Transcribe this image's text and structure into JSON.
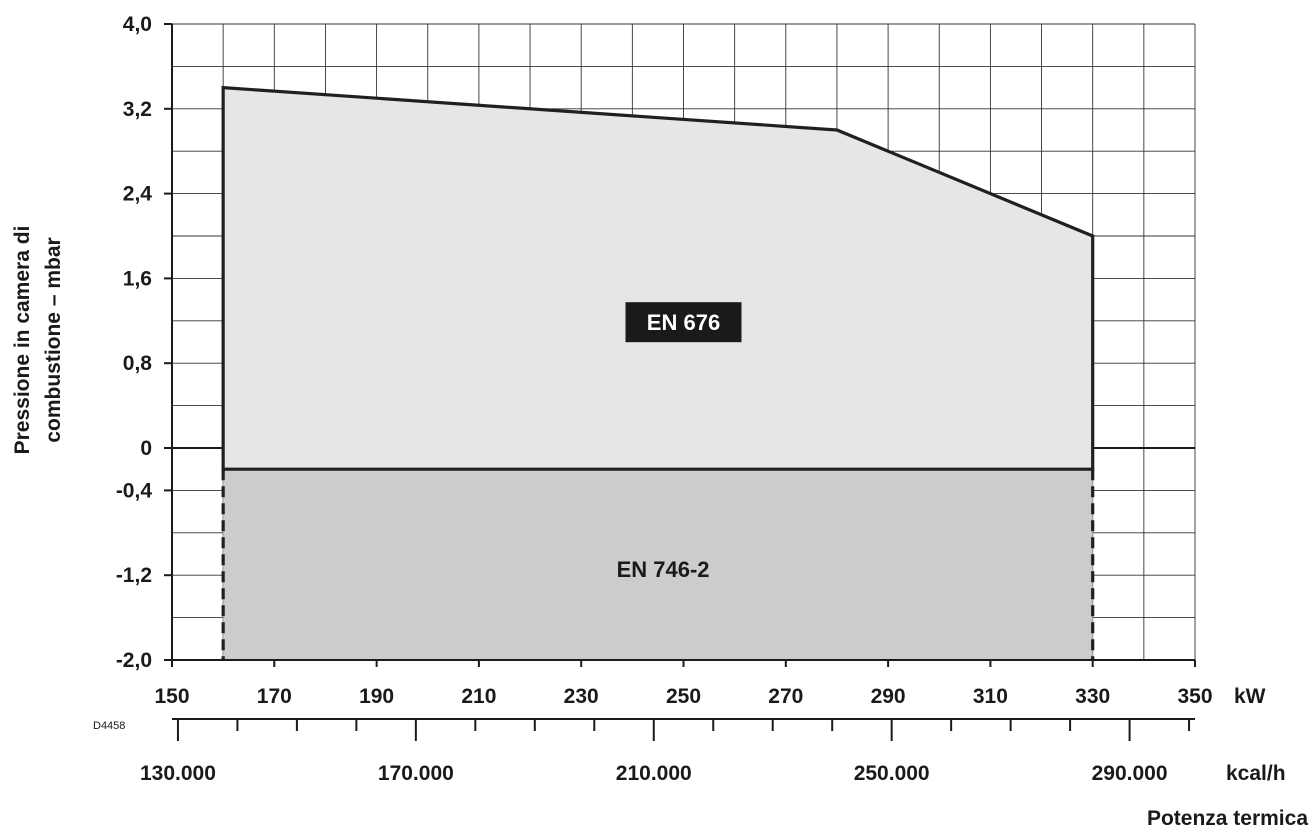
{
  "chart_data": {
    "type": "area",
    "drawing_code": "D4458",
    "ylabel_line1": "Pressione in camera di",
    "ylabel_line2": "combustione – mbar",
    "xlabel": "Potenza termica",
    "x_unit": "kW",
    "x2_unit": "kcal/h",
    "xlim": [
      150,
      350
    ],
    "ylim": [
      -2.0,
      4.0
    ],
    "x_ticks": [
      "150",
      "170",
      "190",
      "210",
      "230",
      "250",
      "270",
      "290",
      "310",
      "330",
      "350"
    ],
    "y_ticks": [
      "4,0",
      "3,2",
      "2,4",
      "1,6",
      "0,8",
      "0",
      "-0,4",
      "-1,2",
      "-2,0"
    ],
    "x2_ticks": [
      "130.000",
      "170.000",
      "210.000",
      "250.000",
      "290.000"
    ],
    "regions": [
      {
        "name": "EN 676",
        "color": "#e6e6e6",
        "outline": [
          {
            "x": 160,
            "y": 3.4
          },
          {
            "x": 280,
            "y": 3.0
          },
          {
            "x": 330,
            "y": 2.0
          },
          {
            "x": 330,
            "y": -0.2
          },
          {
            "x": 160,
            "y": -0.2
          }
        ]
      },
      {
        "name": "EN 746-2",
        "color": "#cccccc",
        "outline": [
          {
            "x": 160,
            "y": -0.2
          },
          {
            "x": 330,
            "y": -0.2
          },
          {
            "x": 330,
            "y": -2.0
          },
          {
            "x": 160,
            "y": -2.0
          }
        ]
      }
    ]
  }
}
